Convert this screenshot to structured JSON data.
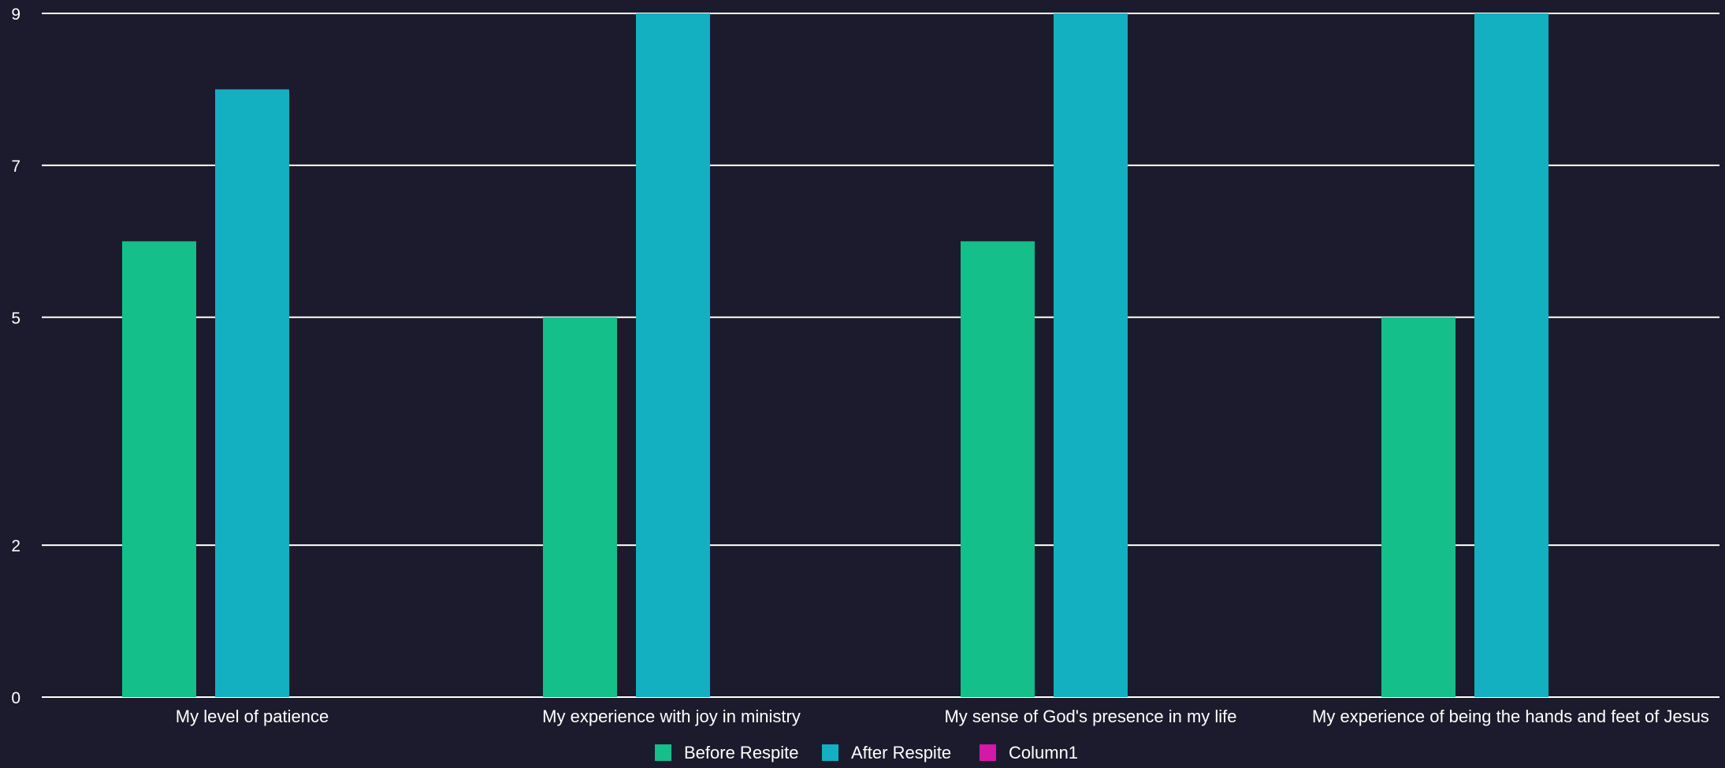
{
  "chart_data": {
    "type": "bar",
    "categories": [
      "My level of patience",
      "My experience with joy in ministry",
      "My sense of God's presence in my life",
      "My experience of being the hands and feet of Jesus"
    ],
    "series": [
      {
        "name": "Before Respite",
        "color": "#14bf8a",
        "values": [
          6,
          5,
          6,
          5
        ]
      },
      {
        "name": "After Respite",
        "color": "#13b0c1",
        "values": [
          8,
          9,
          9,
          9
        ]
      },
      {
        "name": "Column1",
        "color": "#d21aa6",
        "values": [
          null,
          null,
          null,
          null
        ]
      }
    ],
    "y_ticks": [
      "0",
      "2",
      "5",
      "7",
      "9"
    ],
    "ylim": [
      0,
      9
    ],
    "grid": true,
    "legend_position": "bottom",
    "background": "#1c1b2d",
    "text_color": "#ffffff",
    "gridline_color": "#ffffff"
  }
}
